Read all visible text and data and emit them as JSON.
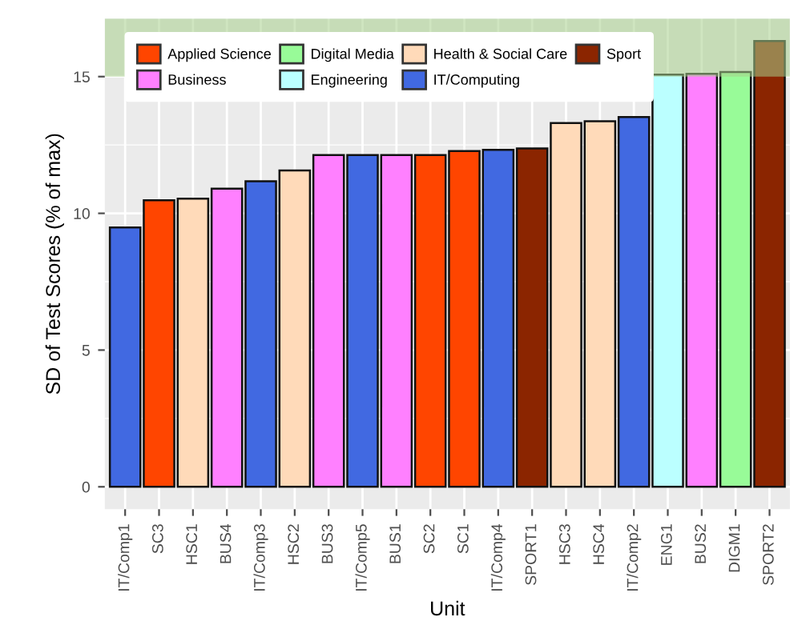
{
  "chart_data": {
    "type": "bar",
    "xlabel": "Unit",
    "ylabel": "SD of Test Scores (% of max)",
    "categories": [
      "IT/Comp1",
      "SC3",
      "HSC1",
      "BUS4",
      "IT/Comp3",
      "HSC2",
      "BUS3",
      "IT/Comp5",
      "BUS1",
      "SC2",
      "SC1",
      "IT/Comp4",
      "SPORT1",
      "HSC3",
      "HSC4",
      "IT/Comp2",
      "ENG1",
      "BUS2",
      "DIGM1",
      "SPORT2"
    ],
    "series": [
      {
        "name": "Applied Science",
        "color": "#ff4500",
        "values": [
          null,
          10.48,
          null,
          null,
          null,
          null,
          null,
          null,
          null,
          12.13,
          12.28,
          null,
          null,
          null,
          null,
          null,
          null,
          null,
          null,
          null
        ]
      },
      {
        "name": "Business",
        "color": "#ff80ff",
        "values": [
          null,
          null,
          null,
          10.9,
          null,
          null,
          12.13,
          null,
          12.13,
          null,
          null,
          null,
          null,
          null,
          null,
          null,
          null,
          15.1,
          null,
          null
        ]
      },
      {
        "name": "Digital Media",
        "color": "#98fb98",
        "values": [
          null,
          null,
          null,
          null,
          null,
          null,
          null,
          null,
          null,
          null,
          null,
          null,
          null,
          null,
          null,
          null,
          null,
          null,
          15.17,
          null
        ]
      },
      {
        "name": "Engineering",
        "color": "#bbffff",
        "values": [
          null,
          null,
          null,
          null,
          null,
          null,
          null,
          null,
          null,
          null,
          null,
          null,
          null,
          null,
          null,
          null,
          15.07,
          null,
          null,
          null
        ]
      },
      {
        "name": "Health & Social Care",
        "color": "#ffdab9",
        "values": [
          null,
          null,
          10.54,
          null,
          null,
          11.57,
          null,
          null,
          null,
          null,
          null,
          null,
          null,
          13.3,
          13.37,
          null,
          null,
          null,
          null,
          null
        ]
      },
      {
        "name": "IT/Computing",
        "color": "#4169e1",
        "values": [
          9.48,
          null,
          null,
          null,
          11.17,
          null,
          null,
          12.13,
          null,
          null,
          null,
          12.32,
          null,
          null,
          null,
          13.52,
          null,
          null,
          null,
          null
        ]
      },
      {
        "name": "Sport",
        "color": "#8b2500",
        "values": [
          null,
          null,
          null,
          null,
          null,
          null,
          null,
          null,
          null,
          null,
          null,
          null,
          12.37,
          null,
          null,
          null,
          null,
          null,
          null,
          16.3
        ]
      }
    ],
    "ylim": [
      -0.82,
      17.12
    ],
    "yticks": [
      0,
      5,
      10,
      15
    ],
    "bands": [
      {
        "axis": "y",
        "from": 15,
        "to": 17.12,
        "color": "#a8d08d"
      }
    ],
    "grid": true,
    "legend": "top left"
  }
}
